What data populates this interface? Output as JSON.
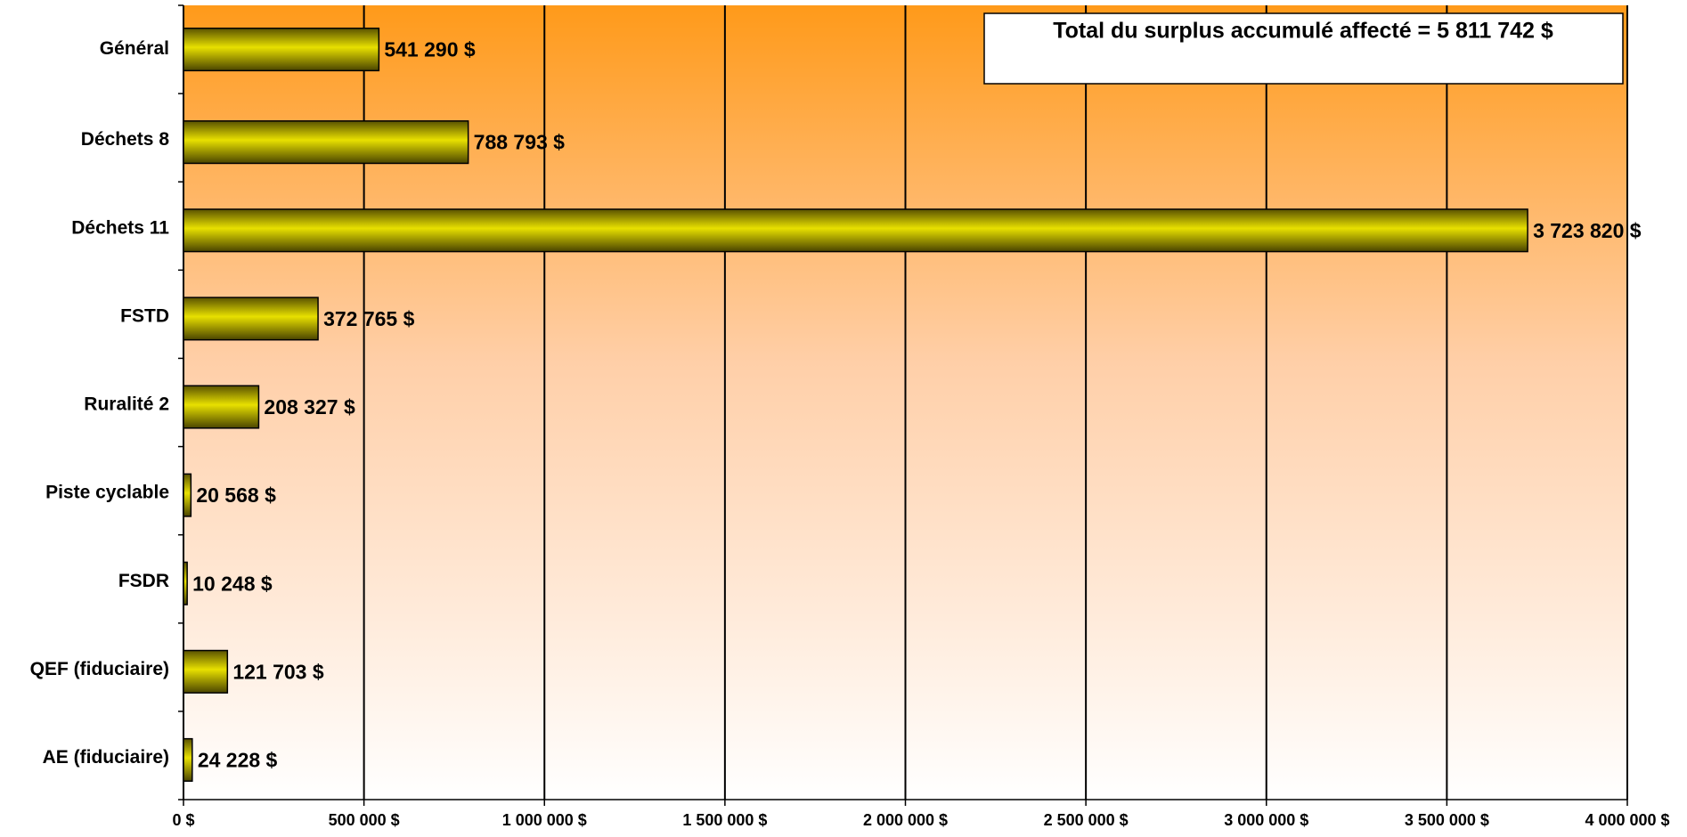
{
  "chart_data": {
    "type": "bar",
    "orientation": "horizontal",
    "annotation": "Total du surplus accumulé affecté = 5 811 742 $",
    "categories": [
      "Général",
      "Déchets 8",
      "Déchets 11",
      "FSTD",
      "Ruralité 2",
      "Piste cyclable",
      "FSDR",
      "QEF (fiduciaire)",
      "AE (fiduciaire)"
    ],
    "values": [
      541290,
      788793,
      3723820,
      372765,
      208327,
      20568,
      10248,
      121703,
      24228
    ],
    "value_labels": [
      "541 290 $",
      "788 793 $",
      "3 723 820 $",
      "372 765 $",
      "208 327 $",
      "20 568 $",
      "10 248 $",
      "121 703 $",
      "24 228 $"
    ],
    "color": "#c8c000",
    "xlim": [
      0,
      4000000
    ],
    "xticks": [
      {
        "value": 0,
        "label": "0 $"
      },
      {
        "value": 500000,
        "label": "500 000 $"
      },
      {
        "value": 1000000,
        "label": "1 000 000 $"
      },
      {
        "value": 1500000,
        "label": "1 500 000 $"
      },
      {
        "value": 2000000,
        "label": "2 000 000 $"
      },
      {
        "value": 2500000,
        "label": "2 500 000 $"
      },
      {
        "value": 3000000,
        "label": "3 000 000 $"
      },
      {
        "value": 3500000,
        "label": "3 500 000 $"
      },
      {
        "value": 4000000,
        "label": "4 000 000 $"
      }
    ],
    "grid": true
  }
}
